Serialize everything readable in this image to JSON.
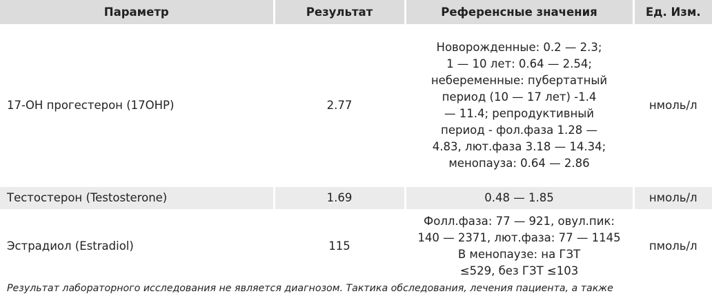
{
  "table": {
    "headers": {
      "parameter": "Параметр",
      "result": "Результат",
      "reference": "Референсные значения",
      "unit": "Ед. Изм."
    },
    "rows": [
      {
        "parameter": "17-ОН прогестерон (17OHP)",
        "result": "2.77",
        "reference_lines": [
          "Новорожденные: 0.2 — 2.3;",
          "1 — 10 лет: 0.64 — 2.54;",
          "небеременные: пубертатный",
          "период (10 — 17 лет) -1.4",
          "— 11.4; репродуктивный",
          "период - фол.фаза 1.28 —",
          "4.83, лют.фаза 3.18 — 14.34;",
          "менопауза: 0.64 — 2.86"
        ],
        "unit": "нмоль/л"
      },
      {
        "parameter": "Тестостерон (Testosterone)",
        "result": "1.69",
        "reference_lines": [
          "0.48 — 1.85"
        ],
        "unit": "нмоль/л"
      },
      {
        "parameter": "Эстрадиол (Estradiol)",
        "result": "115",
        "reference_lines": [
          "Фолл.фаза: 77 — 921, овул.пик:",
          "140 — 2371, лют.фаза: 77 — 1145",
          "В менопаузе: на ГЗТ",
          "≤529, без ГЗТ ≤103"
        ],
        "unit": "пмоль/л"
      }
    ]
  },
  "disclaimer": "Результат лабораторного исследования не является диагнозом. Тактика обследования, лечения пациента, а также",
  "colors": {
    "header_background": "#dcdcdc",
    "shaded_row_background": "#ebebeb",
    "text": "#222222"
  }
}
